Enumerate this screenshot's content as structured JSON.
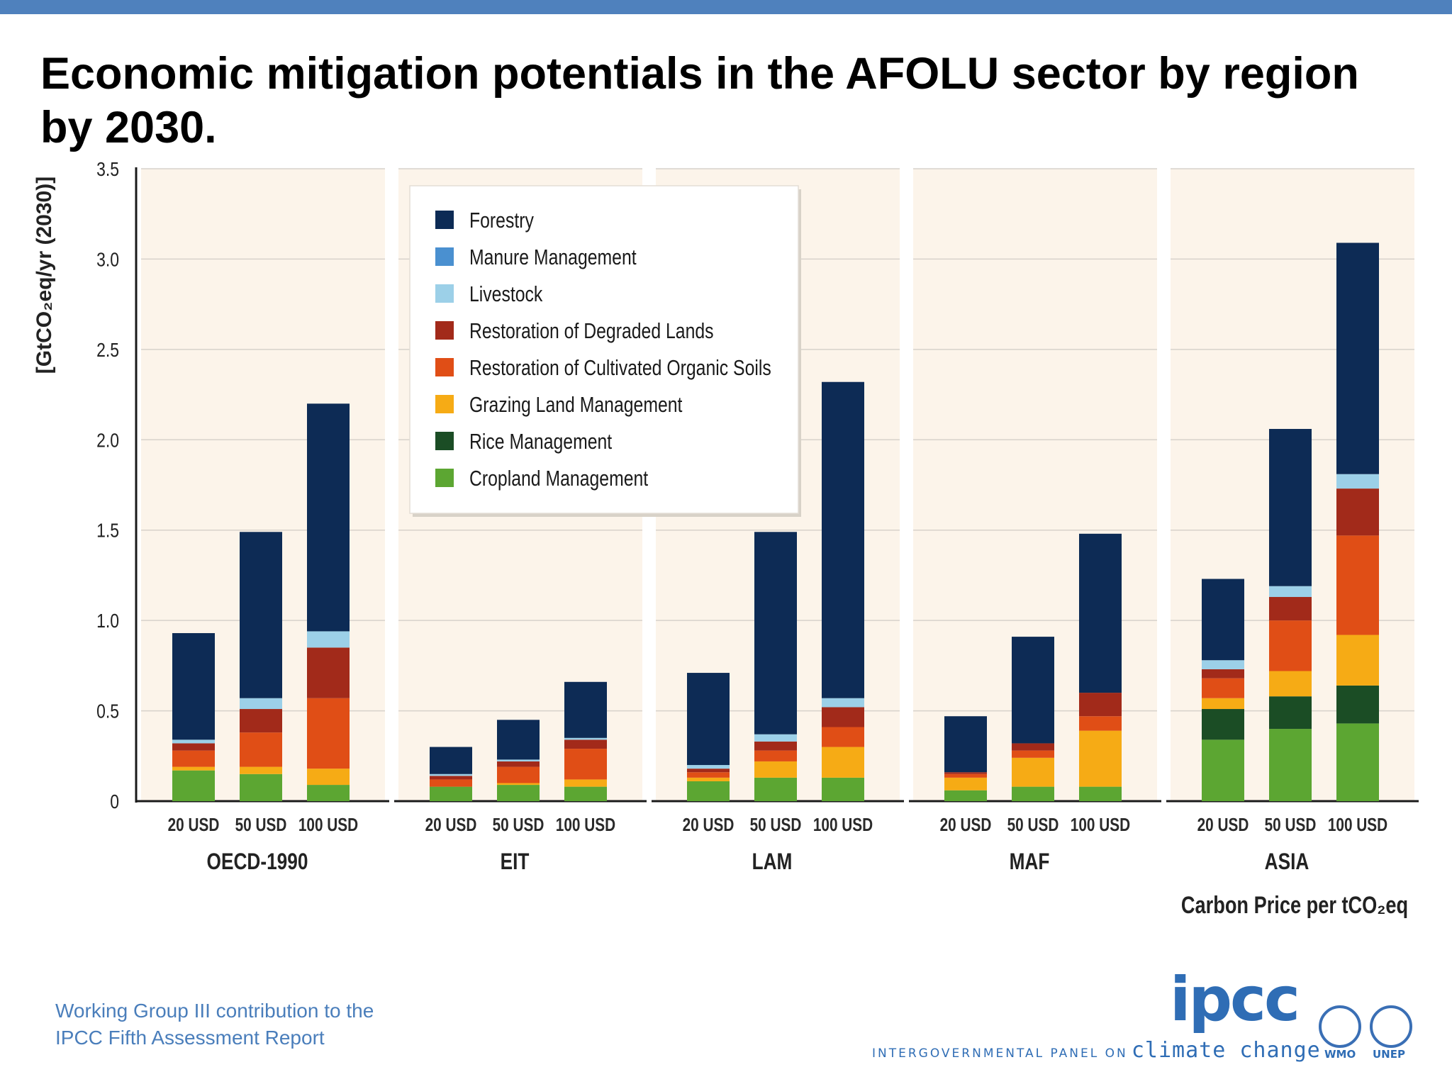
{
  "title": "Economic mitigation potentials in the AFOLU sector by region by 2030.",
  "footer": {
    "line1": "Working Group III contribution to the",
    "line2": "IPCC Fifth Assessment Report"
  },
  "logos": {
    "ipcc_word": "ipcc",
    "ipcc_tagline_small": "INTERGOVERNMENTAL PANEL ON",
    "ipcc_tagline_big": "climate change",
    "wmo": "WMO",
    "unep": "UNEP"
  },
  "colors": {
    "top_bar": "#4f81bd",
    "panel_bg": "#fcf4ea",
    "footer_text": "#4a7ebb"
  },
  "chart_data": {
    "type": "bar",
    "stacked": true,
    "ylabel": "[GtCO₂eq/yr (2030)]",
    "xlabel": "Carbon Price per tCO₂eq",
    "ylim": [
      0,
      3.5
    ],
    "yticks": [
      0,
      0.5,
      1.0,
      1.5,
      2.0,
      2.5,
      3.0,
      3.5
    ],
    "ytick_labels": [
      "0",
      "0.5",
      "1.0",
      "1.5",
      "2.0",
      "2.5",
      "3.0",
      "3.5"
    ],
    "grid": true,
    "legend_position": "top-left",
    "categories": [
      "20 USD",
      "50 USD",
      "100 USD"
    ],
    "regions": [
      "OECD-1990",
      "EIT",
      "LAM",
      "MAF",
      "ASIA"
    ],
    "series": [
      {
        "name": "Cropland Management",
        "color": "#5ca632",
        "values": [
          [
            0.17,
            0.15,
            0.09
          ],
          [
            0.08,
            0.09,
            0.08
          ],
          [
            0.11,
            0.13,
            0.13
          ],
          [
            0.06,
            0.08,
            0.08
          ],
          [
            0.34,
            0.4,
            0.43
          ]
        ]
      },
      {
        "name": "Rice Management",
        "color": "#1b4d25",
        "values": [
          [
            0.0,
            0.0,
            0.0
          ],
          [
            0.0,
            0.0,
            0.0
          ],
          [
            0.0,
            0.0,
            0.0
          ],
          [
            0.0,
            0.0,
            0.0
          ],
          [
            0.17,
            0.18,
            0.21
          ]
        ]
      },
      {
        "name": "Grazing Land Management",
        "color": "#f6ab15",
        "values": [
          [
            0.02,
            0.04,
            0.09
          ],
          [
            0.0,
            0.01,
            0.04
          ],
          [
            0.02,
            0.09,
            0.17
          ],
          [
            0.07,
            0.16,
            0.31
          ],
          [
            0.06,
            0.14,
            0.28
          ]
        ]
      },
      {
        "name": "Restoration of Cultivated Organic Soils",
        "color": "#e04e16",
        "values": [
          [
            0.09,
            0.19,
            0.39
          ],
          [
            0.04,
            0.09,
            0.17
          ],
          [
            0.03,
            0.06,
            0.11
          ],
          [
            0.02,
            0.04,
            0.08
          ],
          [
            0.11,
            0.28,
            0.55
          ]
        ]
      },
      {
        "name": "Restoration of Degraded Lands",
        "color": "#a22a1a",
        "values": [
          [
            0.04,
            0.13,
            0.28
          ],
          [
            0.02,
            0.03,
            0.05
          ],
          [
            0.02,
            0.05,
            0.11
          ],
          [
            0.01,
            0.04,
            0.13
          ],
          [
            0.05,
            0.13,
            0.26
          ]
        ]
      },
      {
        "name": "Livestock",
        "color": "#9cd0e8",
        "values": [
          [
            0.02,
            0.06,
            0.09
          ],
          [
            0.01,
            0.01,
            0.01
          ],
          [
            0.02,
            0.04,
            0.05
          ],
          [
            0.0,
            0.0,
            0.0
          ],
          [
            0.05,
            0.06,
            0.08
          ]
        ]
      },
      {
        "name": "Manure Management",
        "color": "#4a90d0",
        "values": [
          [
            0.0,
            0.0,
            0.0
          ],
          [
            0.0,
            0.0,
            0.0
          ],
          [
            0.0,
            0.0,
            0.0
          ],
          [
            0.0,
            0.0,
            0.0
          ],
          [
            0.0,
            0.0,
            0.0
          ]
        ]
      },
      {
        "name": "Forestry",
        "color": "#0d2b55",
        "values": [
          [
            0.59,
            0.92,
            1.26
          ],
          [
            0.15,
            0.22,
            0.31
          ],
          [
            0.51,
            1.12,
            1.75
          ],
          [
            0.31,
            0.59,
            0.88
          ],
          [
            0.45,
            0.87,
            1.28
          ]
        ]
      }
    ],
    "legend_order": [
      "Forestry",
      "Manure Management",
      "Livestock",
      "Restoration of Degraded Lands",
      "Restoration of Cultivated Organic Soils",
      "Grazing Land Management",
      "Rice Management",
      "Cropland Management"
    ]
  }
}
